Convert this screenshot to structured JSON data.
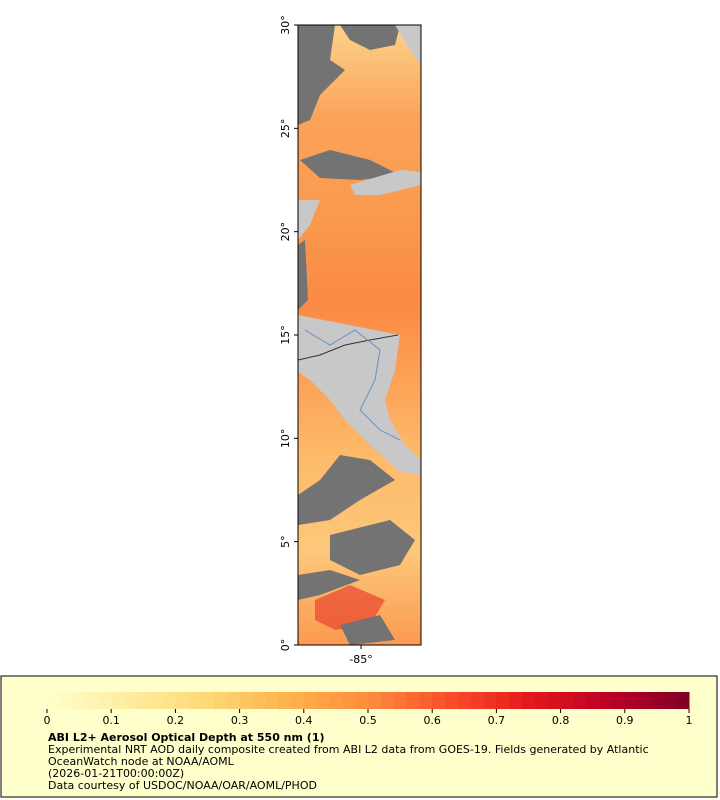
{
  "map": {
    "xlim": [
      -88.05,
      -82.1
    ],
    "xticks": [
      {
        "value": -85,
        "label": "-85°"
      }
    ],
    "ylim": [
      0,
      30
    ],
    "yticks": [
      {
        "value": 0,
        "label": "0°"
      },
      {
        "value": 5,
        "label": "5°"
      },
      {
        "value": 10,
        "label": "10°"
      },
      {
        "value": 15,
        "label": "15°"
      },
      {
        "value": 20,
        "label": "20°"
      },
      {
        "value": 25,
        "label": "25°"
      },
      {
        "value": 30,
        "label": "30°"
      }
    ]
  },
  "legend": {
    "title": "ABI L2+ Aerosol Optical Depth at 550 nm (1)",
    "description": [
      "Experimental NRT AOD daily composite created from ABI L2 data from GOES-19. Fields generated by Atlantic",
      "OceanWatch node at NOAA/AOML",
      "(2026-01-21T00:00:00Z)",
      "Data courtesy of USDOC/NOAA/OAR/AOML/PHOD"
    ],
    "colorbar": {
      "lim": [
        0,
        1
      ],
      "ticks": [
        0,
        0.1,
        0.2,
        0.3,
        0.4,
        0.5,
        0.6,
        0.7,
        0.8,
        0.9,
        1
      ],
      "colors": [
        "#ffffcc",
        "#ffeda0",
        "#fed976",
        "#feb24c",
        "#fd8d3c",
        "#fc4e2a",
        "#e31a1c",
        "#bd0026",
        "#800026"
      ]
    }
  }
}
